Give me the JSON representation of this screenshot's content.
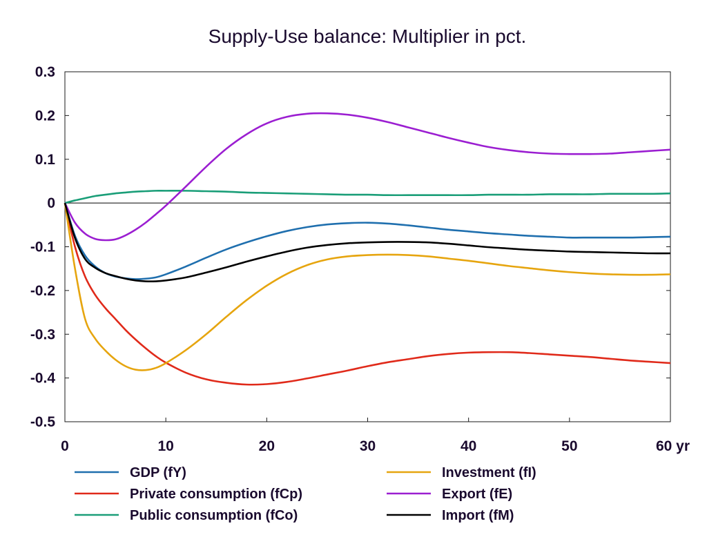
{
  "chart_data": {
    "type": "line",
    "title": "Supply-Use balance: Multiplier in pct.",
    "xlabel": "",
    "ylabel": "",
    "x_unit": "yr",
    "xlim": [
      0,
      60
    ],
    "ylim": [
      -0.5,
      0.3
    ],
    "xticks": [
      0,
      10,
      20,
      30,
      40,
      50,
      60
    ],
    "yticks": [
      0.3,
      0.2,
      0.1,
      0,
      -0.1,
      -0.2,
      -0.3,
      -0.4,
      -0.5
    ],
    "grid": false,
    "zero_line": true,
    "legend_position": "bottom",
    "x": [
      0,
      1,
      2,
      3,
      4,
      5,
      6,
      7,
      8,
      9,
      10,
      12,
      14,
      16,
      18,
      20,
      22,
      24,
      26,
      28,
      30,
      32,
      34,
      36,
      38,
      40,
      42,
      44,
      46,
      48,
      50,
      52,
      54,
      56,
      58,
      60
    ],
    "series": [
      {
        "name": "GDP (fY)",
        "color": "#1f6fae",
        "values": [
          0,
          -0.075,
          -0.12,
          -0.145,
          -0.16,
          -0.168,
          -0.172,
          -0.174,
          -0.173,
          -0.17,
          -0.163,
          -0.145,
          -0.125,
          -0.106,
          -0.09,
          -0.076,
          -0.064,
          -0.055,
          -0.049,
          -0.046,
          -0.045,
          -0.047,
          -0.051,
          -0.056,
          -0.061,
          -0.065,
          -0.069,
          -0.072,
          -0.075,
          -0.077,
          -0.079,
          -0.079,
          -0.079,
          -0.079,
          -0.078,
          -0.077
        ]
      },
      {
        "name": "Private consumption (fCp)",
        "color": "#e02a1a",
        "values": [
          0,
          -0.1,
          -0.168,
          -0.21,
          -0.24,
          -0.265,
          -0.29,
          -0.312,
          -0.332,
          -0.35,
          -0.365,
          -0.388,
          -0.403,
          -0.411,
          -0.415,
          -0.414,
          -0.409,
          -0.401,
          -0.392,
          -0.383,
          -0.373,
          -0.364,
          -0.357,
          -0.35,
          -0.345,
          -0.342,
          -0.341,
          -0.341,
          -0.343,
          -0.346,
          -0.349,
          -0.352,
          -0.356,
          -0.36,
          -0.363,
          -0.366
        ]
      },
      {
        "name": "Public consumption (fCo)",
        "color": "#1a9e78",
        "values": [
          0,
          0.006,
          0.011,
          0.016,
          0.019,
          0.022,
          0.024,
          0.026,
          0.027,
          0.028,
          0.028,
          0.028,
          0.027,
          0.026,
          0.024,
          0.023,
          0.022,
          0.021,
          0.02,
          0.019,
          0.019,
          0.018,
          0.018,
          0.018,
          0.018,
          0.018,
          0.019,
          0.019,
          0.019,
          0.02,
          0.02,
          0.02,
          0.021,
          0.021,
          0.021,
          0.022
        ]
      },
      {
        "name": "Investment (fI)",
        "color": "#e6a50f",
        "values": [
          0,
          -0.15,
          -0.265,
          -0.31,
          -0.337,
          -0.358,
          -0.373,
          -0.381,
          -0.382,
          -0.377,
          -0.366,
          -0.336,
          -0.3,
          -0.26,
          -0.222,
          -0.189,
          -0.162,
          -0.142,
          -0.129,
          -0.122,
          -0.119,
          -0.118,
          -0.119,
          -0.122,
          -0.127,
          -0.132,
          -0.138,
          -0.144,
          -0.149,
          -0.154,
          -0.158,
          -0.161,
          -0.163,
          -0.164,
          -0.164,
          -0.163
        ]
      },
      {
        "name": "Export (fE)",
        "color": "#9b1ed1",
        "values": [
          0,
          -0.045,
          -0.07,
          -0.082,
          -0.085,
          -0.083,
          -0.074,
          -0.061,
          -0.045,
          -0.026,
          -0.006,
          0.038,
          0.083,
          0.124,
          0.157,
          0.182,
          0.197,
          0.204,
          0.205,
          0.202,
          0.195,
          0.185,
          0.173,
          0.161,
          0.149,
          0.138,
          0.128,
          0.121,
          0.116,
          0.113,
          0.112,
          0.112,
          0.113,
          0.116,
          0.119,
          0.122
        ]
      },
      {
        "name": "Import (fM)",
        "color": "#000000",
        "values": [
          0,
          -0.08,
          -0.128,
          -0.148,
          -0.16,
          -0.167,
          -0.173,
          -0.177,
          -0.179,
          -0.179,
          -0.177,
          -0.17,
          -0.159,
          -0.147,
          -0.134,
          -0.122,
          -0.111,
          -0.102,
          -0.096,
          -0.092,
          -0.09,
          -0.089,
          -0.089,
          -0.09,
          -0.093,
          -0.097,
          -0.101,
          -0.104,
          -0.107,
          -0.109,
          -0.111,
          -0.112,
          -0.113,
          -0.114,
          -0.115,
          -0.115
        ]
      }
    ]
  }
}
